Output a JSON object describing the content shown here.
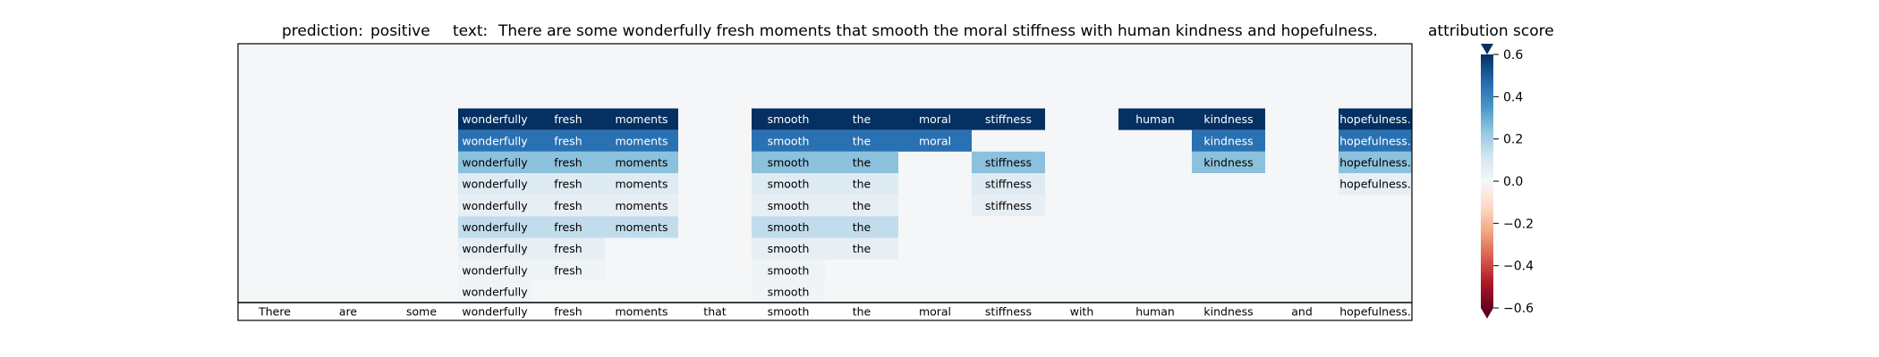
{
  "header": {
    "prediction_label": "prediction:",
    "prediction_value": "positive",
    "text_label": "text:",
    "text_value": "There are some wonderfully fresh moments that smooth the moral stiffness with human kindness and hopefulness."
  },
  "colorbar": {
    "title": "attribution score",
    "ticks": [
      "0.6",
      "0.4",
      "0.2",
      "0.0",
      "−0.2",
      "−0.4",
      "−0.6"
    ],
    "tick_values": [
      0.6,
      0.4,
      0.2,
      0.0,
      -0.2,
      -0.4,
      -0.6
    ],
    "range": [
      -0.6,
      0.6
    ],
    "colormap": "RdBu",
    "colormap_stops": [
      "#67001f",
      "#b2182b",
      "#d6604d",
      "#f4a582",
      "#fddbc7",
      "#f7f7f7",
      "#d1e5f0",
      "#92c5de",
      "#4393c3",
      "#2166ac",
      "#053061"
    ],
    "extend": "both"
  },
  "chart_data": {
    "type": "heatmap",
    "title": "",
    "tokens": [
      "There",
      "are",
      "some",
      "wonderfully",
      "fresh",
      "moments",
      "that",
      "smooth",
      "the",
      "moral",
      "stiffness",
      "with",
      "human",
      "kindness",
      "and",
      "hopefulness."
    ],
    "n_levels": 12,
    "background_color": "#f5f6f7",
    "layers_top_to_bottom": [
      [
        0,
        0,
        0,
        0.62,
        0.62,
        0.62,
        0,
        0.62,
        0.62,
        0.62,
        0.62,
        0,
        0.62,
        0.62,
        0,
        0.62
      ],
      [
        0,
        0,
        0,
        0.45,
        0.45,
        0.45,
        0,
        0.45,
        0.45,
        0.45,
        0,
        0,
        0,
        0.45,
        0,
        0.45
      ],
      [
        0,
        0,
        0,
        0.25,
        0.25,
        0.25,
        0,
        0.25,
        0.25,
        0,
        0.25,
        0,
        0,
        0.25,
        0,
        0.25
      ],
      [
        0,
        0,
        0,
        0.08,
        0.08,
        0.08,
        0,
        0.08,
        0.08,
        0,
        0.08,
        0,
        0,
        0,
        0,
        0.05
      ],
      [
        0,
        0,
        0,
        0.05,
        0.05,
        0.05,
        0,
        0.05,
        0.05,
        0,
        0.05,
        0,
        0,
        0,
        0,
        0
      ],
      [
        0,
        0,
        0,
        0.15,
        0.15,
        0.15,
        0,
        0.15,
        0.15,
        0,
        0,
        0,
        0,
        0,
        0,
        0
      ],
      [
        0,
        0,
        0,
        0.05,
        0.05,
        0,
        0,
        0.05,
        0.05,
        0,
        0,
        0,
        0,
        0,
        0,
        0
      ],
      [
        0,
        0,
        0,
        0.03,
        0.03,
        0,
        0,
        0.03,
        0,
        0,
        0,
        0,
        0,
        0,
        0,
        0
      ],
      [
        0,
        0,
        0,
        0.02,
        0,
        0,
        0,
        0.02,
        0,
        0,
        0,
        0,
        0,
        0,
        0,
        0
      ]
    ]
  }
}
